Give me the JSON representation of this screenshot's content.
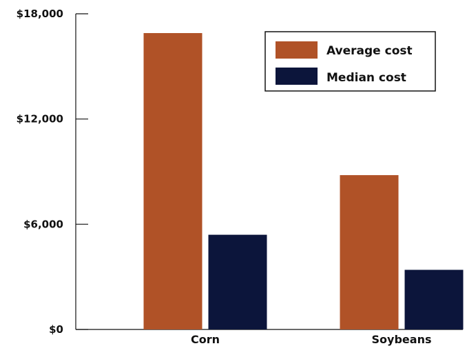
{
  "chart_data": {
    "type": "bar",
    "categories": [
      "Corn",
      "Soybeans"
    ],
    "series": [
      {
        "name": "Average cost",
        "values": [
          16900,
          8800
        ],
        "color": "#b05227"
      },
      {
        "name": "Median cost",
        "values": [
          5400,
          3400
        ],
        "color": "#0c153b"
      }
    ],
    "ylim": [
      0,
      18000
    ],
    "yticks": [
      0,
      6000,
      12000,
      18000
    ],
    "ytick_labels": [
      "$0",
      "$6,000",
      "$12,000",
      "$18,000"
    ],
    "legend": "top-right",
    "grid": false,
    "xlabel": "",
    "ylabel": ""
  }
}
